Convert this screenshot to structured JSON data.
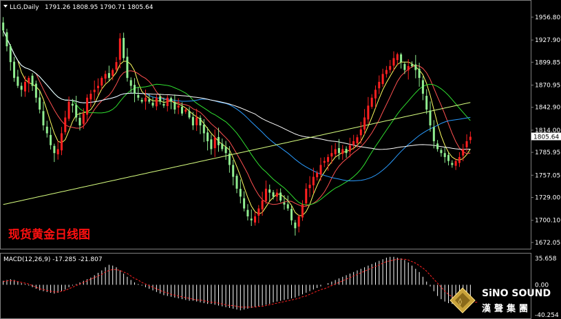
{
  "header": {
    "symbol": "LLG,Daily",
    "ohlc": "1791.26 1808.95 1790.71 1805.64"
  },
  "overlay_title": "现货黄金日线图",
  "brand": {
    "name_en": "SiNO SOUND",
    "name_cn": "漢聲集團"
  },
  "current_price_label": "1805.64",
  "macd_label": "MACD(12,26,9) -17.285 -21.807",
  "colors": {
    "bull": "#ff2020",
    "bear": "#90ee90",
    "ma5": "#ffff60",
    "ma10": "#ff5050",
    "ma20": "#30e030",
    "ma60": "#2a9cff",
    "ma120": "#ffffff",
    "ma250": "#d8ff80",
    "macd_signal": "#ff2020",
    "macd_hist": "#ffffff"
  },
  "chart_data": {
    "type": "candlestick",
    "price_axis": {
      "min": 1665,
      "max": 1975,
      "tick_labels": [
        "1956.80",
        "1927.90",
        "1899.85",
        "1870.95",
        "1842.90",
        "1814.00",
        "1785.95",
        "1757.05",
        "1729.00",
        "1700.10",
        "1672.05"
      ]
    },
    "close_series": [
      1940,
      1920,
      1900,
      1880,
      1870,
      1865,
      1875,
      1880,
      1870,
      1855,
      1840,
      1820,
      1810,
      1795,
      1785,
      1790,
      1810,
      1830,
      1850,
      1845,
      1830,
      1820,
      1835,
      1855,
      1860,
      1865,
      1870,
      1880,
      1885,
      1880,
      1890,
      1900,
      1930,
      1905,
      1880,
      1870,
      1860,
      1855,
      1850,
      1855,
      1850,
      1845,
      1855,
      1850,
      1845,
      1855,
      1850,
      1840,
      1845,
      1835,
      1840,
      1830,
      1820,
      1830,
      1820,
      1810,
      1800,
      1790,
      1805,
      1795,
      1790,
      1785,
      1770,
      1755,
      1740,
      1730,
      1715,
      1705,
      1700,
      1705,
      1715,
      1725,
      1740,
      1735,
      1730,
      1735,
      1725,
      1720,
      1715,
      1700,
      1690,
      1705,
      1720,
      1740,
      1745,
      1755,
      1760,
      1770,
      1775,
      1780,
      1785,
      1790,
      1785,
      1790,
      1785,
      1795,
      1800,
      1805,
      1815,
      1830,
      1845,
      1855,
      1865,
      1875,
      1885,
      1890,
      1895,
      1905,
      1910,
      1900,
      1890,
      1895,
      1895,
      1890,
      1880,
      1860,
      1840,
      1820,
      1800,
      1790,
      1785,
      1780,
      1775,
      1770,
      1775,
      1780,
      1790,
      1800,
      1805.64
    ],
    "moving_averages": [
      {
        "name": "MA5",
        "color_key": "ma5"
      },
      {
        "name": "MA10",
        "color_key": "ma10"
      },
      {
        "name": "MA20",
        "color_key": "ma20"
      },
      {
        "name": "MA60",
        "color_key": "ma60"
      },
      {
        "name": "MA120",
        "color_key": "ma120"
      },
      {
        "name": "MA250",
        "color_key": "ma250"
      }
    ],
    "macd_axis": {
      "tick_labels": [
        "35.658",
        "0.00",
        "-40.254"
      ],
      "min": -40.254,
      "max": 35.658
    },
    "macd_histogram": [
      5,
      6,
      7,
      6,
      4,
      2,
      1,
      -1,
      -3,
      -5,
      -7,
      -8,
      -9,
      -10,
      -11,
      -10,
      -8,
      -6,
      -3,
      -1,
      1,
      3,
      5,
      7,
      9,
      12,
      15,
      18,
      22,
      25,
      24,
      22,
      18,
      14,
      10,
      6,
      3,
      1,
      -1,
      -3,
      -5,
      -7,
      -9,
      -11,
      -13,
      -14,
      -15,
      -16,
      -17,
      -18,
      -19,
      -20,
      -20,
      -21,
      -22,
      -23,
      -24,
      -24,
      -25,
      -26,
      -27,
      -28,
      -29,
      -30,
      -31,
      -32,
      -31,
      -30,
      -29,
      -28,
      -27,
      -26,
      -25,
      -24,
      -22,
      -21,
      -20,
      -19,
      -18,
      -17,
      -16,
      -14,
      -12,
      -10,
      -8,
      -6,
      -4,
      -2,
      0,
      2,
      4,
      6,
      8,
      10,
      12,
      14,
      16,
      18,
      20,
      22,
      24,
      26,
      28,
      30,
      32,
      34,
      35,
      35,
      34,
      33,
      31,
      28,
      24,
      20,
      16,
      10,
      4,
      -2,
      -8,
      -14,
      -18,
      -21,
      -23,
      -24,
      -24,
      -23,
      -22,
      -20,
      -17.285
    ],
    "macd_signal": [
      4,
      5,
      5,
      5,
      4,
      3,
      2,
      1,
      -1,
      -3,
      -5,
      -6,
      -7,
      -8,
      -9,
      -9,
      -8,
      -7,
      -5,
      -3,
      -1,
      1,
      3,
      5,
      7,
      9,
      11,
      13,
      16,
      18,
      19,
      19,
      18,
      16,
      14,
      11,
      8,
      6,
      3,
      1,
      -1,
      -3,
      -5,
      -7,
      -9,
      -10,
      -12,
      -13,
      -14,
      -15,
      -16,
      -17,
      -18,
      -19,
      -19,
      -20,
      -21,
      -22,
      -22,
      -23,
      -24,
      -25,
      -26,
      -26,
      -27,
      -28,
      -28,
      -28,
      -28,
      -28,
      -27,
      -27,
      -26,
      -25,
      -24,
      -23,
      -22,
      -21,
      -20,
      -19,
      -18,
      -17,
      -15,
      -14,
      -12,
      -10,
      -8,
      -6,
      -5,
      -3,
      -1,
      1,
      3,
      5,
      7,
      9,
      11,
      13,
      15,
      17,
      19,
      21,
      23,
      25,
      27,
      29,
      30,
      31,
      32,
      32,
      32,
      31,
      29,
      27,
      24,
      21,
      17,
      12,
      7,
      2,
      -3,
      -8,
      -12,
      -15,
      -18,
      -20,
      -21,
      -21.807,
      -21.807,
      -21.807,
      -21.807
    ]
  }
}
